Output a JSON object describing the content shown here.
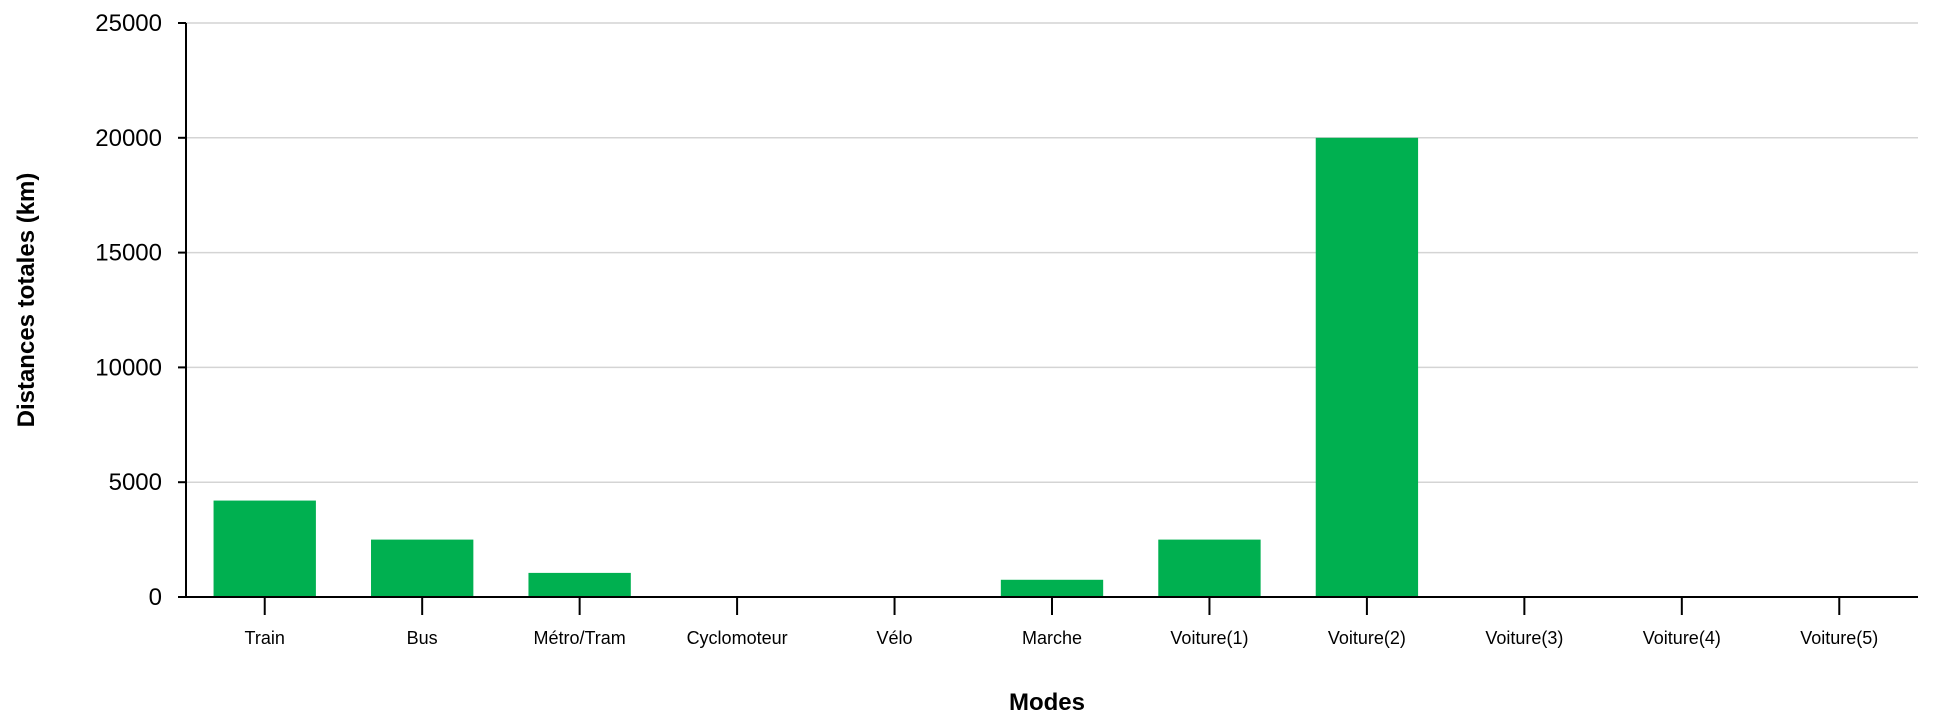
{
  "chart_data": {
    "type": "bar",
    "categories": [
      "Train",
      "Bus",
      "Métro/Tram",
      "Cyclomoteur",
      "Vélo",
      "Marche",
      "Voiture(1)",
      "Voiture(2)",
      "Voiture(3)",
      "Voiture(4)",
      "Voiture(5)"
    ],
    "values": [
      4200,
      2500,
      1050,
      0,
      0,
      750,
      2500,
      20000,
      0,
      0,
      0
    ],
    "yticks": [
      0,
      5000,
      10000,
      15000,
      20000,
      25000
    ],
    "ylim": [
      0,
      25000
    ],
    "xlabel": "Modes",
    "ylabel": "Distances totales  (km)",
    "grid": true,
    "legend": "none",
    "bar_color": "#00b050"
  }
}
